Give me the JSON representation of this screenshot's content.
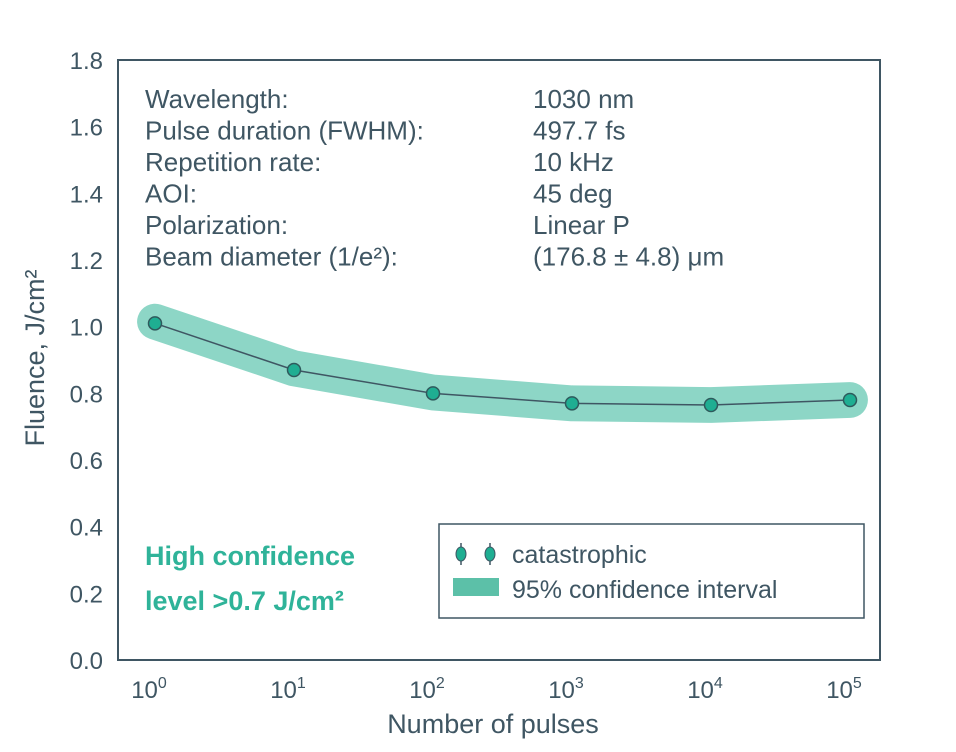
{
  "chart_data": {
    "type": "line",
    "title": "",
    "xlabel": "Number of pulses",
    "ylabel": "Fluence, J/cm²",
    "xscale": "log",
    "xlim_exp": [
      -0.15,
      5.15
    ],
    "ylim": [
      0.0,
      1.8
    ],
    "grid": false,
    "x_ticks": [
      {
        "base": "10",
        "exp": "0",
        "value": 1
      },
      {
        "base": "10",
        "exp": "1",
        "value": 10
      },
      {
        "base": "10",
        "exp": "2",
        "value": 100
      },
      {
        "base": "10",
        "exp": "3",
        "value": 1000
      },
      {
        "base": "10",
        "exp": "4",
        "value": 10000
      },
      {
        "base": "10",
        "exp": "5",
        "value": 100000
      }
    ],
    "y_ticks": [
      "0.0",
      "0.2",
      "0.4",
      "0.6",
      "0.8",
      "1.0",
      "1.2",
      "1.4",
      "1.6",
      "1.8"
    ],
    "series": [
      {
        "name": "catastrophic",
        "x": [
          1,
          10,
          100,
          1000,
          10000,
          100000
        ],
        "y": [
          1.01,
          0.87,
          0.8,
          0.77,
          0.765,
          0.78
        ],
        "color": "#1fae92",
        "line_color": "#3f5663"
      },
      {
        "name": "95% confidence interval",
        "type": "band",
        "x": [
          1,
          10,
          100,
          1000,
          10000,
          100000
        ],
        "upper": [
          1.07,
          0.94,
          0.86,
          0.82,
          0.815,
          0.825
        ],
        "lower": [
          0.96,
          0.81,
          0.745,
          0.72,
          0.715,
          0.735
        ],
        "color": "#8dd6c6"
      }
    ],
    "parameters": [
      {
        "label": "Wavelength:",
        "value": "1030 nm"
      },
      {
        "label": "Pulse duration (FWHM):",
        "value": "497.7 fs"
      },
      {
        "label": "Repetition rate:",
        "value": "10 kHz"
      },
      {
        "label": "AOI:",
        "value": "45 deg"
      },
      {
        "label": "Polarization:",
        "value": "Linear P"
      },
      {
        "label": "Beam diameter (1/e²):",
        "value": "(176.8 ± 4.8) μm"
      }
    ],
    "annotation": {
      "line1": "High confidence",
      "line2": "level >0.7 J/cm²",
      "color": "#2fb399"
    },
    "legend": {
      "placement": "bottom-right",
      "items": [
        {
          "label": "catastrophic",
          "symbol": "marker"
        },
        {
          "label": "95% confidence interval",
          "symbol": "band"
        }
      ]
    },
    "colors": {
      "axis": "#3f5663",
      "marker_fill": "#1fae92",
      "band": "#8dd6c6",
      "legend_band": "#5cc0a8"
    }
  }
}
